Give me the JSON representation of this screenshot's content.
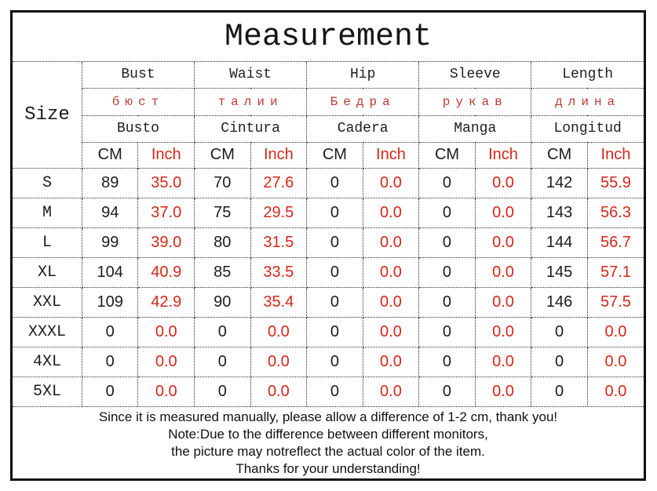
{
  "title": "Measurement",
  "table": {
    "size_header": "Size",
    "columns": [
      {
        "en": "Bust",
        "ru": "бюст",
        "es": "Busto"
      },
      {
        "en": "Waist",
        "ru": "талии",
        "es": "Cintura"
      },
      {
        "en": "Hip",
        "ru": "Бедра",
        "es": "Cadera"
      },
      {
        "en": "Sleeve",
        "ru": "рукав",
        "es": "Manga"
      },
      {
        "en": "Length",
        "ru": "длина",
        "es": "Longitud"
      }
    ],
    "unit_cm": "CM",
    "unit_inch": "Inch",
    "rows": [
      {
        "size": "S",
        "values": [
          "89",
          "35.0",
          "70",
          "27.6",
          "0",
          "0.0",
          "0",
          "0.0",
          "142",
          "55.9"
        ]
      },
      {
        "size": "M",
        "values": [
          "94",
          "37.0",
          "75",
          "29.5",
          "0",
          "0.0",
          "0",
          "0.0",
          "143",
          "56.3"
        ]
      },
      {
        "size": "L",
        "values": [
          "99",
          "39.0",
          "80",
          "31.5",
          "0",
          "0.0",
          "0",
          "0.0",
          "144",
          "56.7"
        ]
      },
      {
        "size": "XL",
        "values": [
          "104",
          "40.9",
          "85",
          "33.5",
          "0",
          "0.0",
          "0",
          "0.0",
          "145",
          "57.1"
        ]
      },
      {
        "size": "XXL",
        "values": [
          "109",
          "42.9",
          "90",
          "35.4",
          "0",
          "0.0",
          "0",
          "0.0",
          "146",
          "57.5"
        ]
      },
      {
        "size": "XXXL",
        "values": [
          "0",
          "0.0",
          "0",
          "0.0",
          "0",
          "0.0",
          "0",
          "0.0",
          "0",
          "0.0"
        ]
      },
      {
        "size": "4XL",
        "values": [
          "0",
          "0.0",
          "0",
          "0.0",
          "0",
          "0.0",
          "0",
          "0.0",
          "0",
          "0.0"
        ]
      },
      {
        "size": "5XL",
        "values": [
          "0",
          "0.0",
          "0",
          "0.0",
          "0",
          "0.0",
          "0",
          "0.0",
          "0",
          "0.0"
        ]
      }
    ]
  },
  "footer": {
    "lines": [
      "Since it is measured manually, please allow a difference of 1-2 cm, thank you!",
      "Note:Due to the difference between different monitors,",
      "the picture may notreflect the actual color of the item.",
      "Thanks for your understanding!"
    ]
  },
  "colors": {
    "accent_red": "#d8261a",
    "russian_red": "#c03a32",
    "text_black": "#1c1c1c",
    "border_black": "#101010"
  }
}
